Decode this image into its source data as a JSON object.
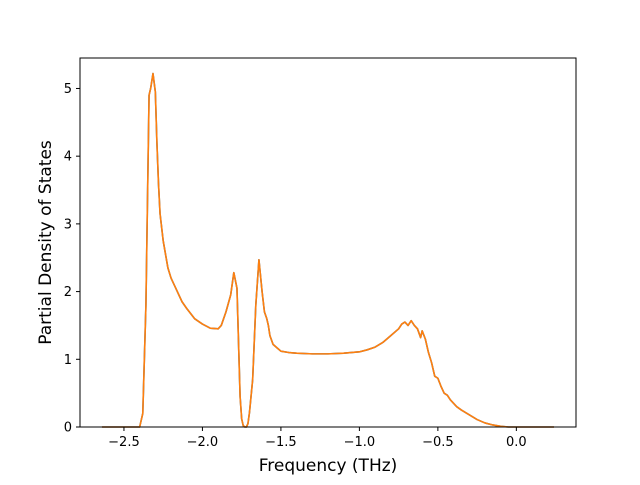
{
  "chart_data": {
    "type": "line",
    "title": "",
    "xlabel": "Frequency (THz)",
    "ylabel": "Partial Density of States",
    "xlim": [
      -2.78,
      0.38
    ],
    "ylim": [
      0,
      5.45
    ],
    "xticks": [
      -2.5,
      -2.0,
      -1.5,
      -1.0,
      -0.5,
      0.0
    ],
    "xtick_labels": [
      "−2.5",
      "−2.0",
      "−1.5",
      "−1.0",
      "−0.5",
      "0.0"
    ],
    "yticks": [
      0,
      1,
      2,
      3,
      4,
      5
    ],
    "ytick_labels": [
      "0",
      "1",
      "2",
      "3",
      "4",
      "5"
    ],
    "grid": false,
    "legend": "none",
    "series": [
      {
        "color": "#1f77b4",
        "x": [
          -2.64,
          -2.4,
          -2.38,
          -2.36,
          -2.34,
          -2.33,
          -2.315,
          -2.3,
          -2.29,
          -2.28,
          -2.27,
          -2.25,
          -2.22,
          -2.2,
          -2.17,
          -2.13,
          -2.1,
          -2.05,
          -2.0,
          -1.95,
          -1.9,
          -1.88,
          -1.85,
          -1.82,
          -1.8,
          -1.78,
          -1.76,
          -1.75,
          -1.74,
          -1.73,
          -1.72,
          -1.71,
          -1.7,
          -1.68,
          -1.66,
          -1.64,
          -1.62,
          -1.605,
          -1.59,
          -1.58,
          -1.57,
          -1.55,
          -1.52,
          -1.5,
          -1.45,
          -1.4,
          -1.3,
          -1.2,
          -1.1,
          -1.0,
          -0.95,
          -0.9,
          -0.85,
          -0.8,
          -0.75,
          -0.73,
          -0.71,
          -0.69,
          -0.67,
          -0.65,
          -0.63,
          -0.61,
          -0.6,
          -0.58,
          -0.56,
          -0.54,
          -0.52,
          -0.5,
          -0.48,
          -0.46,
          -0.44,
          -0.42,
          -0.4,
          -0.38,
          -0.35,
          -0.3,
          -0.25,
          -0.2,
          -0.15,
          -0.1,
          -0.05,
          0.0,
          0.1,
          0.24
        ],
        "y": [
          0,
          0,
          0.2,
          1.8,
          4.9,
          5.0,
          5.22,
          4.95,
          4.2,
          3.6,
          3.15,
          2.75,
          2.35,
          2.2,
          2.05,
          1.85,
          1.75,
          1.6,
          1.52,
          1.46,
          1.45,
          1.5,
          1.7,
          1.95,
          2.28,
          2.05,
          0.45,
          0.12,
          0.02,
          0.0,
          0.0,
          0.05,
          0.22,
          0.7,
          1.8,
          2.47,
          2.0,
          1.7,
          1.6,
          1.5,
          1.35,
          1.22,
          1.16,
          1.12,
          1.1,
          1.09,
          1.08,
          1.08,
          1.09,
          1.11,
          1.14,
          1.18,
          1.25,
          1.35,
          1.45,
          1.52,
          1.55,
          1.5,
          1.57,
          1.5,
          1.45,
          1.32,
          1.42,
          1.3,
          1.1,
          0.95,
          0.75,
          0.72,
          0.6,
          0.5,
          0.47,
          0.4,
          0.35,
          0.3,
          0.25,
          0.18,
          0.11,
          0.06,
          0.03,
          0.01,
          0.0,
          0.0,
          0.0,
          0.0
        ]
      },
      {
        "color": "#ff7f0e",
        "x": [
          -2.64,
          -2.4,
          -2.38,
          -2.36,
          -2.34,
          -2.33,
          -2.315,
          -2.3,
          -2.29,
          -2.28,
          -2.27,
          -2.25,
          -2.22,
          -2.2,
          -2.17,
          -2.13,
          -2.1,
          -2.05,
          -2.0,
          -1.95,
          -1.9,
          -1.88,
          -1.85,
          -1.82,
          -1.8,
          -1.78,
          -1.76,
          -1.75,
          -1.74,
          -1.73,
          -1.72,
          -1.71,
          -1.7,
          -1.68,
          -1.66,
          -1.64,
          -1.62,
          -1.605,
          -1.59,
          -1.58,
          -1.57,
          -1.55,
          -1.52,
          -1.5,
          -1.45,
          -1.4,
          -1.3,
          -1.2,
          -1.1,
          -1.0,
          -0.95,
          -0.9,
          -0.85,
          -0.8,
          -0.75,
          -0.73,
          -0.71,
          -0.69,
          -0.67,
          -0.65,
          -0.63,
          -0.61,
          -0.6,
          -0.58,
          -0.56,
          -0.54,
          -0.52,
          -0.5,
          -0.48,
          -0.46,
          -0.44,
          -0.42,
          -0.4,
          -0.38,
          -0.35,
          -0.3,
          -0.25,
          -0.2,
          -0.15,
          -0.1,
          -0.05,
          0.0,
          0.1,
          0.24
        ],
        "y": [
          0,
          0,
          0.2,
          1.8,
          4.9,
          5.0,
          5.22,
          4.95,
          4.2,
          3.6,
          3.15,
          2.75,
          2.35,
          2.2,
          2.05,
          1.85,
          1.75,
          1.6,
          1.52,
          1.46,
          1.45,
          1.5,
          1.7,
          1.95,
          2.28,
          2.05,
          0.45,
          0.12,
          0.02,
          0.0,
          0.0,
          0.05,
          0.22,
          0.7,
          1.8,
          2.47,
          2.0,
          1.7,
          1.6,
          1.5,
          1.35,
          1.22,
          1.16,
          1.12,
          1.1,
          1.09,
          1.08,
          1.08,
          1.09,
          1.11,
          1.14,
          1.18,
          1.25,
          1.35,
          1.45,
          1.52,
          1.55,
          1.5,
          1.57,
          1.5,
          1.45,
          1.32,
          1.42,
          1.3,
          1.1,
          0.95,
          0.75,
          0.72,
          0.6,
          0.5,
          0.47,
          0.4,
          0.35,
          0.3,
          0.25,
          0.18,
          0.11,
          0.06,
          0.03,
          0.01,
          0.0,
          0.0,
          0.0,
          0.0
        ]
      }
    ]
  }
}
